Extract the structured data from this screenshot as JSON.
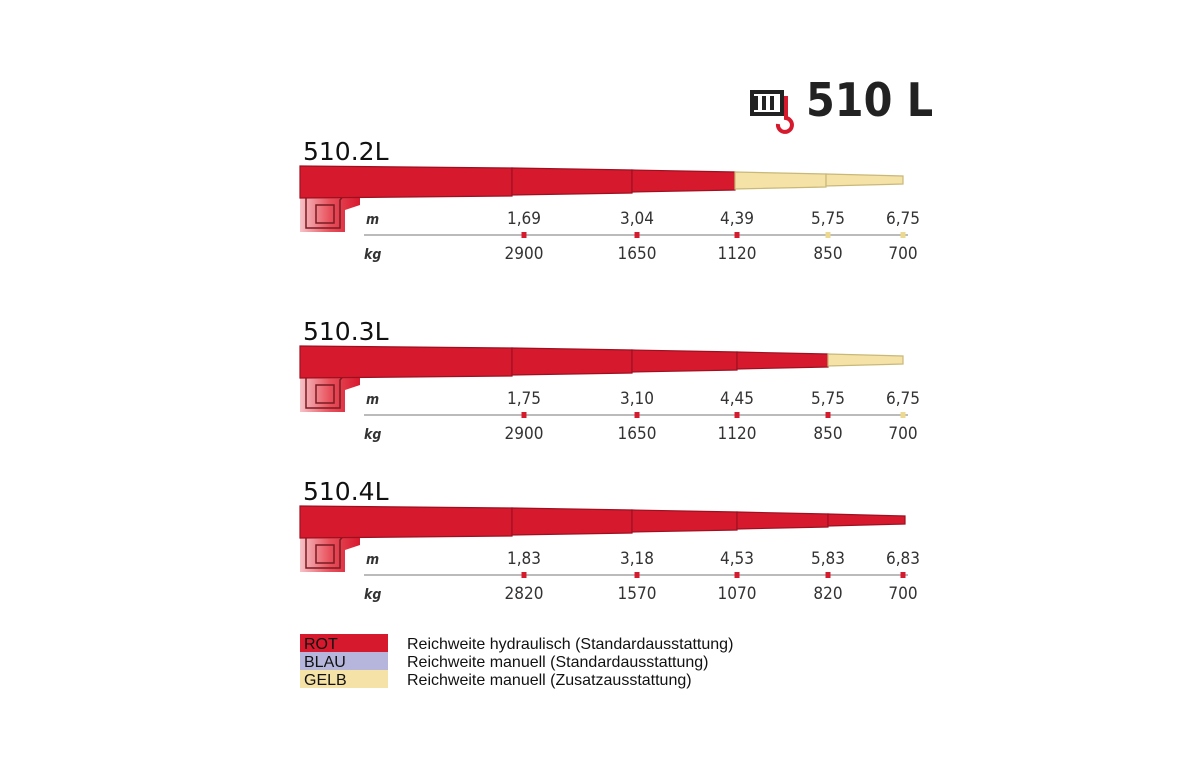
{
  "header": {
    "title": "510 L"
  },
  "sections": [
    {
      "name": "510.2L",
      "unit_reach": "m",
      "unit_load": "kg",
      "reach": [
        "1,69",
        "3,04",
        "4,39",
        "5,75",
        "6,75"
      ],
      "load": [
        "2900",
        "1650",
        "1120",
        "850",
        "700"
      ]
    },
    {
      "name": "510.3L",
      "unit_reach": "m",
      "unit_load": "kg",
      "reach": [
        "1,75",
        "3,10",
        "4,45",
        "5,75",
        "6,75"
      ],
      "load": [
        "2900",
        "1650",
        "1120",
        "850",
        "700"
      ]
    },
    {
      "name": "510.4L",
      "unit_reach": "m",
      "unit_load": "kg",
      "reach": [
        "1,83",
        "3,18",
        "4,53",
        "5,83",
        "6,83"
      ],
      "load": [
        "2820",
        "1570",
        "1070",
        "820",
        "700"
      ]
    }
  ],
  "legend": [
    {
      "swatch": "ROT",
      "text": "Reichweite hydraulisch (Standardausstattung)"
    },
    {
      "swatch": "BLAU",
      "text": "Reichweite manuell (Standardausstattung)"
    },
    {
      "swatch": "GELB",
      "text": "Reichweite manuell (Zusatzausstattung)"
    }
  ]
}
